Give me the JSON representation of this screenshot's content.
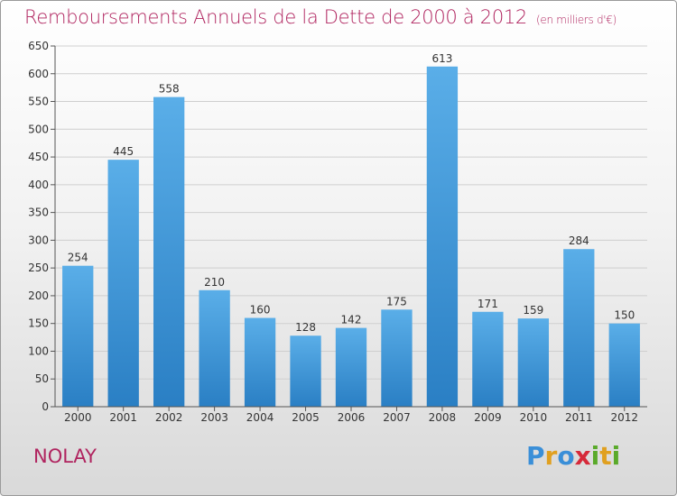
{
  "title": "Remboursements Annuels de la Dette de 2000 à 2012",
  "subtitle": "(en milliers d'€)",
  "commune": "NOLAY",
  "logo": {
    "text": "Proxiti",
    "letters": [
      {
        "ch": "P",
        "color": "#3a8fd8"
      },
      {
        "ch": "r",
        "color": "#e0a020"
      },
      {
        "ch": "o",
        "color": "#3a8fd8"
      },
      {
        "ch": "x",
        "color": "#d62a3a"
      },
      {
        "ch": "i",
        "color": "#5aaa2a"
      },
      {
        "ch": "t",
        "color": "#e0a020"
      },
      {
        "ch": "i",
        "color": "#5aaa2a"
      }
    ]
  },
  "colors": {
    "title": "#b0245f",
    "bar_top": "#5aaee8",
    "bar_bottom": "#2a7fc4"
  },
  "chart_data": {
    "type": "bar",
    "categories": [
      "2000",
      "2001",
      "2002",
      "2003",
      "2004",
      "2005",
      "2006",
      "2007",
      "2008",
      "2009",
      "2010",
      "2011",
      "2012"
    ],
    "values": [
      254,
      445,
      558,
      210,
      160,
      128,
      142,
      175,
      613,
      171,
      159,
      284,
      150
    ],
    "ylim": [
      0,
      650
    ],
    "yticks": [
      0,
      50,
      100,
      150,
      200,
      250,
      300,
      350,
      400,
      450,
      500,
      550,
      600,
      650
    ],
    "grid": true
  }
}
